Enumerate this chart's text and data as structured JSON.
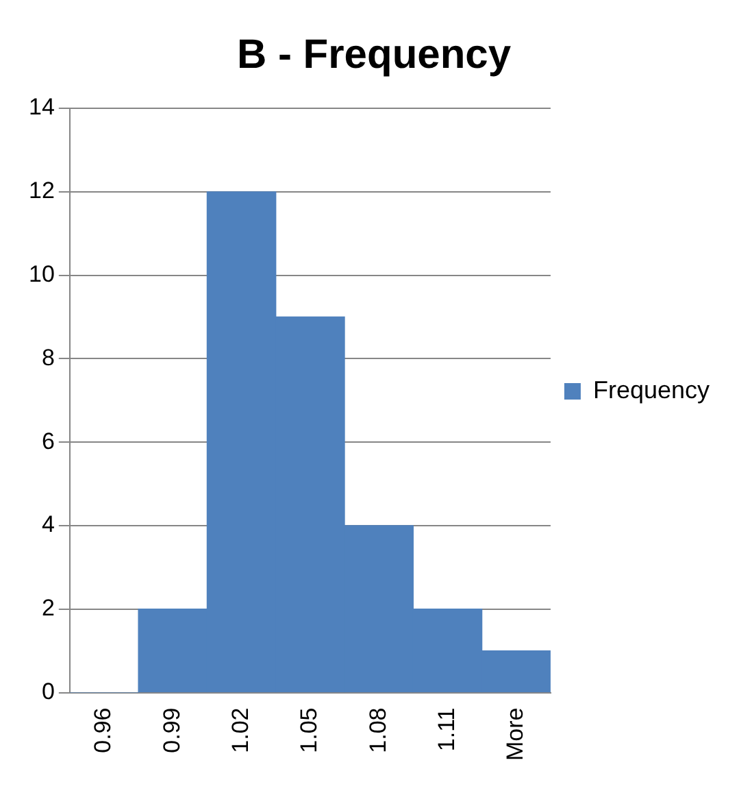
{
  "chart_data": {
    "type": "bar",
    "title": "B - Frequency",
    "categories": [
      "0.96",
      "0.99",
      "1.02",
      "1.05",
      "1.08",
      "1.11",
      "More"
    ],
    "series": [
      {
        "name": "Frequency",
        "color": "#4f81bd",
        "values": [
          0,
          2,
          12,
          9,
          4,
          2,
          1
        ]
      }
    ],
    "ylim": [
      0,
      14
    ],
    "yticks": [
      0,
      2,
      4,
      6,
      8,
      10,
      12,
      14
    ],
    "grid": "y",
    "legend": "right"
  }
}
